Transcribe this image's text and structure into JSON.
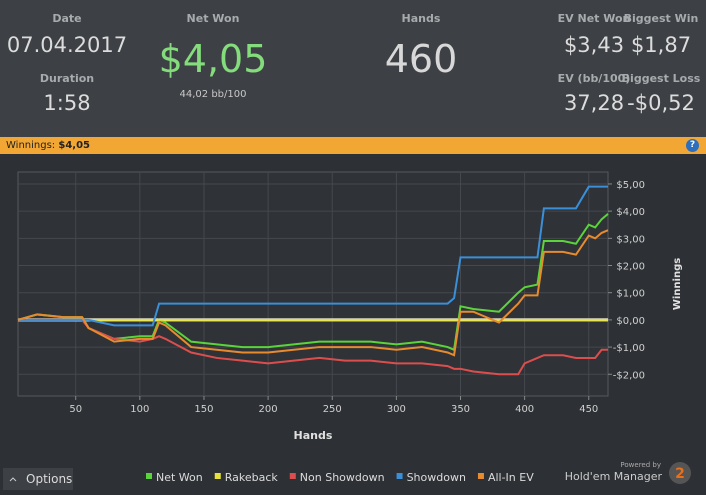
{
  "header": {
    "date_label": "Date",
    "date": "07.04.2017",
    "duration_label": "Duration",
    "duration": "1:58",
    "net_won_label": "Net Won",
    "net_won": "$4,05",
    "bb100": "44,02 bb/100",
    "hands_label": "Hands",
    "hands": "460",
    "ev_net_won_label": "EV Net Won",
    "ev_net_won": "$3,43",
    "biggest_win_label": "Biggest Win",
    "biggest_win": "$1,87",
    "ev_bb_label": "EV (bb/100)",
    "ev_bb": "37,28",
    "biggest_loss_label": "Biggest Loss",
    "biggest_loss": "-$0,52"
  },
  "banner": {
    "label": "Winnings:",
    "value": "$4,05",
    "help": "?"
  },
  "chart_data": {
    "type": "line",
    "x_label": "Hands",
    "y_label": "Winnings",
    "grid": true,
    "x": [
      5,
      20,
      40,
      55,
      60,
      80,
      100,
      110,
      115,
      120,
      140,
      160,
      180,
      200,
      220,
      240,
      260,
      280,
      300,
      320,
      340,
      345,
      350,
      360,
      380,
      395,
      400,
      410,
      415,
      430,
      440,
      450,
      455,
      460,
      465
    ],
    "series": [
      {
        "name": "Net Won",
        "color": "#5ad43a",
        "values": [
          0,
          0.2,
          0.1,
          0.1,
          -0.3,
          -0.7,
          -0.6,
          -0.6,
          0,
          -0.1,
          -0.8,
          -0.9,
          -1,
          -1,
          -0.9,
          -0.8,
          -0.8,
          -0.8,
          -0.9,
          -0.8,
          -1,
          -1.1,
          0.5,
          0.4,
          0.3,
          1,
          1.2,
          1.3,
          2.9,
          2.9,
          2.8,
          3.5,
          3.4,
          3.7,
          3.9
        ]
      },
      {
        "name": "Rakeback",
        "color": "#e6e23a",
        "values": [
          0,
          0,
          0,
          0,
          0,
          0,
          0,
          0,
          0,
          0,
          0,
          0,
          0,
          0,
          0,
          0,
          0,
          0,
          0,
          0,
          0,
          0,
          0,
          0,
          0,
          0,
          0,
          0,
          0,
          0,
          0,
          0,
          0,
          0,
          0
        ]
      },
      {
        "name": "Non Showdown",
        "color": "#dc4e4e",
        "values": [
          0,
          0,
          0,
          0,
          -0.3,
          -0.7,
          -0.8,
          -0.7,
          -0.6,
          -0.7,
          -1.2,
          -1.4,
          -1.5,
          -1.6,
          -1.5,
          -1.4,
          -1.5,
          -1.5,
          -1.6,
          -1.6,
          -1.7,
          -1.8,
          -1.8,
          -1.9,
          -2,
          -2,
          -1.6,
          -1.4,
          -1.3,
          -1.3,
          -1.4,
          -1.4,
          -1.4,
          -1.1,
          -1.1
        ]
      },
      {
        "name": "Showdown",
        "color": "#3b8fd8",
        "values": [
          0,
          0,
          0,
          0,
          0,
          -0.2,
          -0.2,
          -0.2,
          0.6,
          0.6,
          0.6,
          0.6,
          0.6,
          0.6,
          0.6,
          0.6,
          0.6,
          0.6,
          0.6,
          0.6,
          0.6,
          0.8,
          2.3,
          2.3,
          2.3,
          2.3,
          2.3,
          2.3,
          4.1,
          4.1,
          4.1,
          4.9,
          4.9,
          4.9,
          4.9
        ]
      },
      {
        "name": "All-In EV",
        "color": "#e88a2e",
        "values": [
          0,
          0.2,
          0.1,
          0.1,
          -0.3,
          -0.8,
          -0.7,
          -0.7,
          -0.1,
          -0.2,
          -1,
          -1.1,
          -1.2,
          -1.2,
          -1.1,
          -1,
          -1,
          -1,
          -1.1,
          -1,
          -1.2,
          -1.3,
          0.3,
          0.3,
          -0.1,
          0.6,
          0.9,
          0.9,
          2.5,
          2.5,
          2.4,
          3.1,
          3,
          3.2,
          3.3
        ]
      }
    ],
    "xlim": [
      5,
      465
    ],
    "xticks": [
      50,
      100,
      150,
      200,
      250,
      300,
      350,
      400,
      450
    ],
    "ylim": [
      -2.8,
      5.44
    ],
    "yticks": [
      {
        "value": -2,
        "label": "-$2,00"
      },
      {
        "value": -1,
        "label": "-$1,00"
      },
      {
        "value": 0,
        "label": "$0,00"
      },
      {
        "value": 1,
        "label": "$1,00"
      },
      {
        "value": 2,
        "label": "$2,00"
      },
      {
        "value": 3,
        "label": "$3,00"
      },
      {
        "value": 4,
        "label": "$4,00"
      },
      {
        "value": 5,
        "label": "$5,00"
      }
    ]
  },
  "footer": {
    "options": "Options",
    "powered_by": "Powered by",
    "brand": "Hold'em Manager",
    "badge": "2"
  }
}
